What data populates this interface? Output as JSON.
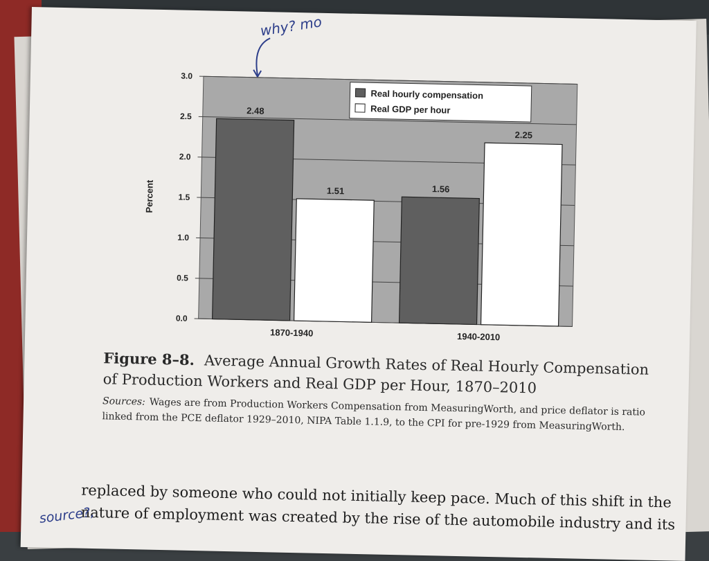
{
  "chart_data": {
    "type": "bar",
    "categories": [
      "1870-1940",
      "1940-2010"
    ],
    "series": [
      {
        "name": "Real hourly compensation",
        "values": [
          2.48,
          1.56
        ],
        "color": "#5f5f5f"
      },
      {
        "name": "Real GDP per hour",
        "values": [
          1.51,
          2.25
        ],
        "color": "#ffffff"
      }
    ],
    "ylabel": "Percent",
    "xlabel": "",
    "ylim": [
      0,
      3.0
    ],
    "yticks": [
      "0.0",
      "0.5",
      "1.0",
      "1.5",
      "2.0",
      "2.5",
      "3.0"
    ],
    "legend_position": "top-center",
    "grid": true,
    "background_color": "#a9a9a9"
  },
  "caption": {
    "figure_label": "Figure 8–8.",
    "title": "Average Annual Growth Rates of Real Hourly Compensation of Production Workers and Real GDP per Hour, 1870–2010",
    "sources_label": "Sources:",
    "sources_text": "Wages are from Production Workers Compensation from MeasuringWorth, and price deflator is ratio linked from the PCE deflator 1929–2010, NIPA Table 1.1.9, to the CPI for pre-1929 from MeasuringWorth."
  },
  "body_text": "replaced by someone who could not initially keep pace. Much of this shift in the nature of employment was created by the rise of the automobile industry and its",
  "annotations": {
    "top_note": "why? mo",
    "margin_note": "source?,"
  }
}
